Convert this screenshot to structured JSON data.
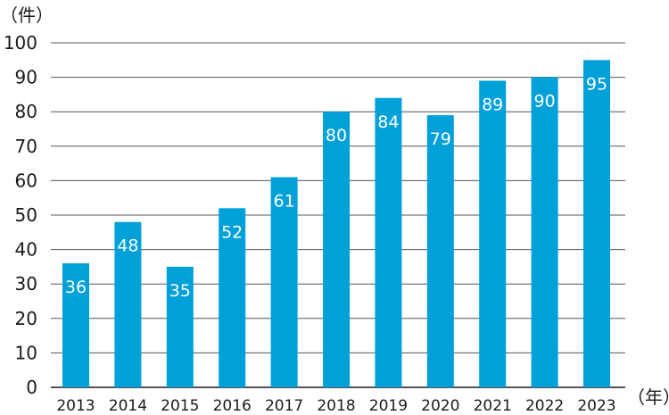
{
  "chart_data": {
    "type": "bar",
    "title": "",
    "ylabel": "（件）",
    "xlabel": "（年）",
    "categories": [
      "2013",
      "2014",
      "2015",
      "2016",
      "2017",
      "2018",
      "2019",
      "2020",
      "2021",
      "2022",
      "2023"
    ],
    "values": [
      36,
      48,
      35,
      52,
      61,
      80,
      84,
      79,
      89,
      90,
      95
    ],
    "ylim": [
      0,
      100
    ],
    "yticks": [
      0,
      10,
      20,
      30,
      40,
      50,
      60,
      70,
      80,
      90,
      100
    ],
    "grid": true,
    "bar_color": "#00a0d9",
    "grid_color": "#555555"
  }
}
